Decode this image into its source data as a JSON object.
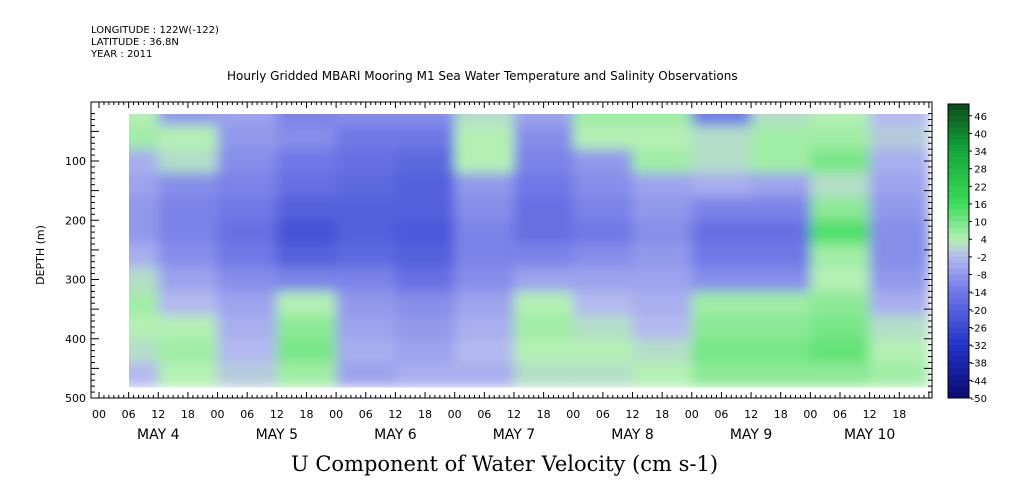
{
  "header": {
    "longitude": "LONGITUDE : 122W(-122)",
    "latitude": "LATITUDE : 36.8N",
    "year": "YEAR : 2011"
  },
  "chart_data": {
    "type": "heatmap",
    "title": "Hourly Gridded MBARI Mooring M1 Sea Water Temperature and Salinity Observations",
    "xlabel": "U Component of Water Velocity (cm s-1)",
    "ylabel": "DEPTH (m)",
    "ylim": [
      500,
      0
    ],
    "y_ticks": [
      "100",
      "200",
      "300",
      "400",
      "500"
    ],
    "x_hour_ticks": [
      "00",
      "06",
      "12",
      "18",
      "00",
      "06",
      "12",
      "18",
      "00",
      "06",
      "12",
      "18",
      "00",
      "06",
      "12",
      "18",
      "00",
      "06",
      "12",
      "18",
      "00",
      "06",
      "12",
      "18",
      "00",
      "06",
      "12",
      "18"
    ],
    "x_day_labels": [
      "MAY  4",
      "MAY  5",
      "MAY  6",
      "MAY  7",
      "MAY  8",
      "MAY  9",
      "MAY 10"
    ],
    "colorbar_labels": [
      "46",
      "40",
      "34",
      "28",
      "22",
      "16",
      "10",
      "4",
      "-2",
      "-8",
      "-14",
      "-20",
      "-26",
      "-32",
      "-38",
      "-44",
      "-50"
    ],
    "colorbar_range": [
      -50,
      50
    ],
    "colors": {
      "min": "#0a0a6e",
      "mid_low": "#b4b9f0",
      "mid_high": "#b4f0b4",
      "max": "#0b4a1a"
    },
    "depth_bins": [
      20,
      60,
      100,
      140,
      180,
      220,
      260,
      300,
      340,
      380,
      420,
      460
    ],
    "time_bins_hours": [
      6,
      18,
      30,
      42,
      54,
      66,
      78,
      90,
      102,
      114,
      126,
      138,
      150,
      162
    ],
    "values": [
      [
        4,
        -8,
        -6,
        -12,
        -10,
        -10,
        2,
        -6,
        6,
        6,
        -14,
        2,
        4,
        -2
      ],
      [
        6,
        4,
        -8,
        -10,
        -14,
        -14,
        4,
        -10,
        4,
        4,
        2,
        6,
        6,
        0
      ],
      [
        -4,
        2,
        -10,
        -14,
        -16,
        -18,
        4,
        -12,
        -8,
        6,
        2,
        6,
        10,
        -4
      ],
      [
        -6,
        -10,
        -12,
        -16,
        -18,
        -20,
        -8,
        -14,
        -10,
        -6,
        -4,
        -6,
        2,
        -6
      ],
      [
        -8,
        -12,
        -14,
        -20,
        -20,
        -20,
        -10,
        -16,
        -12,
        -8,
        -12,
        -12,
        8,
        -8
      ],
      [
        -8,
        -12,
        -16,
        -24,
        -20,
        -22,
        -12,
        -16,
        -14,
        -10,
        -16,
        -16,
        14,
        -10
      ],
      [
        -4,
        -10,
        -14,
        -20,
        -18,
        -20,
        -12,
        -12,
        -10,
        -8,
        -14,
        -14,
        6,
        -10
      ],
      [
        2,
        -6,
        -10,
        -12,
        -12,
        -16,
        -10,
        -6,
        -6,
        -6,
        -10,
        -10,
        4,
        -8
      ],
      [
        6,
        -2,
        -6,
        4,
        -8,
        -10,
        -6,
        4,
        -2,
        -4,
        6,
        6,
        8,
        -4
      ],
      [
        4,
        4,
        -4,
        8,
        -6,
        -8,
        -4,
        6,
        2,
        -2,
        8,
        8,
        10,
        2
      ],
      [
        2,
        6,
        -2,
        10,
        -4,
        -6,
        -2,
        4,
        4,
        2,
        10,
        10,
        12,
        4
      ],
      [
        -2,
        4,
        0,
        6,
        -6,
        -4,
        -4,
        2,
        2,
        4,
        8,
        8,
        8,
        6
      ]
    ],
    "missing_regions_note": ""
  }
}
